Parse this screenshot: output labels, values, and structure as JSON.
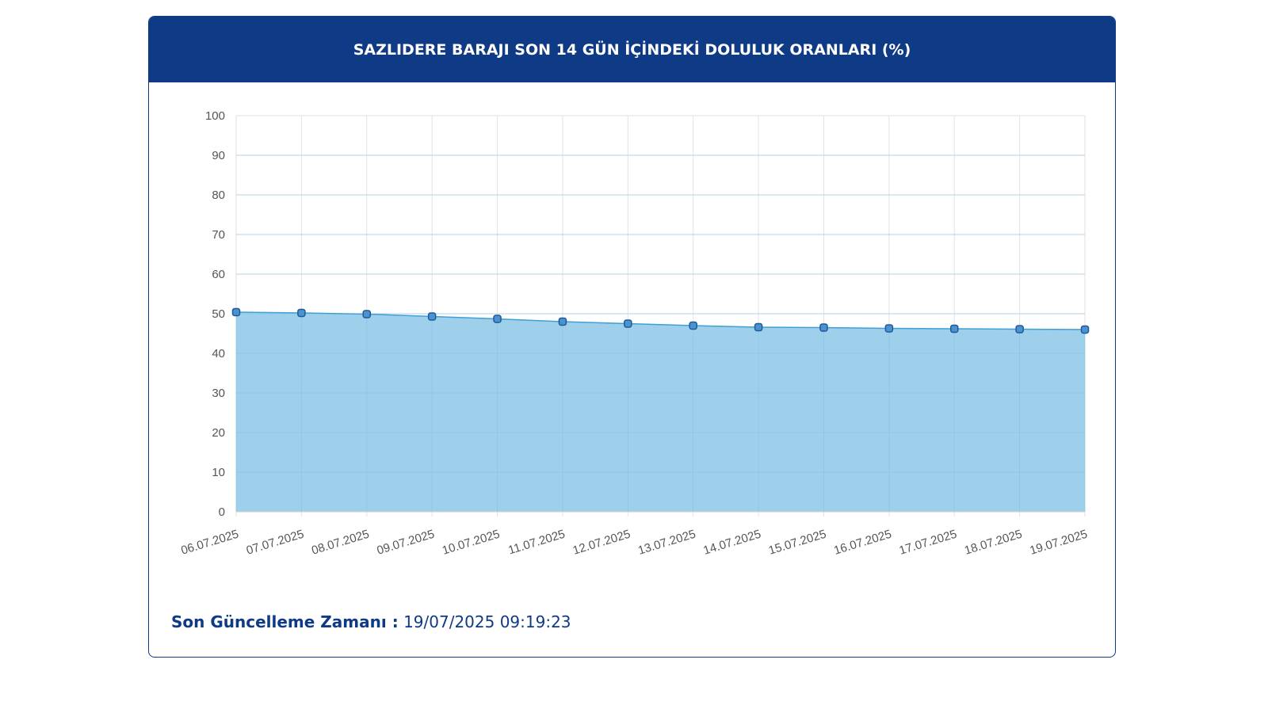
{
  "header": {
    "title": "SAZLIDERE BARAJI SON 14 GÜN İÇİNDEKİ DOLULUK ORANLARI (%)"
  },
  "footer": {
    "label": "Son Güncelleme Zamanı :",
    "value": "19/07/2025 09:19:23"
  },
  "colors": {
    "brand": "#0f3a85",
    "area_fill": "#9ed0ec",
    "line": "#3f9fd6",
    "point_fill": "#4a93d0",
    "point_stroke": "#1f5a96",
    "grid": "#e2e2e2",
    "tick_text": "#555555"
  },
  "chart_data": {
    "type": "area",
    "title": "",
    "xlabel": "",
    "ylabel": "",
    "x": [
      "06.07.2025",
      "07.07.2025",
      "08.07.2025",
      "09.07.2025",
      "10.07.2025",
      "11.07.2025",
      "12.07.2025",
      "13.07.2025",
      "14.07.2025",
      "15.07.2025",
      "16.07.2025",
      "17.07.2025",
      "18.07.2025",
      "19.07.2025"
    ],
    "series": [
      {
        "values": [
          50.4,
          50.2,
          49.9,
          49.3,
          48.7,
          48.0,
          47.5,
          47.0,
          46.6,
          46.5,
          46.3,
          46.2,
          46.1,
          46.0
        ]
      }
    ],
    "ylim": [
      0,
      100
    ],
    "yticks": [
      0,
      10,
      20,
      30,
      40,
      50,
      60,
      70,
      80,
      90,
      100
    ],
    "grid": true,
    "legend": "none"
  }
}
